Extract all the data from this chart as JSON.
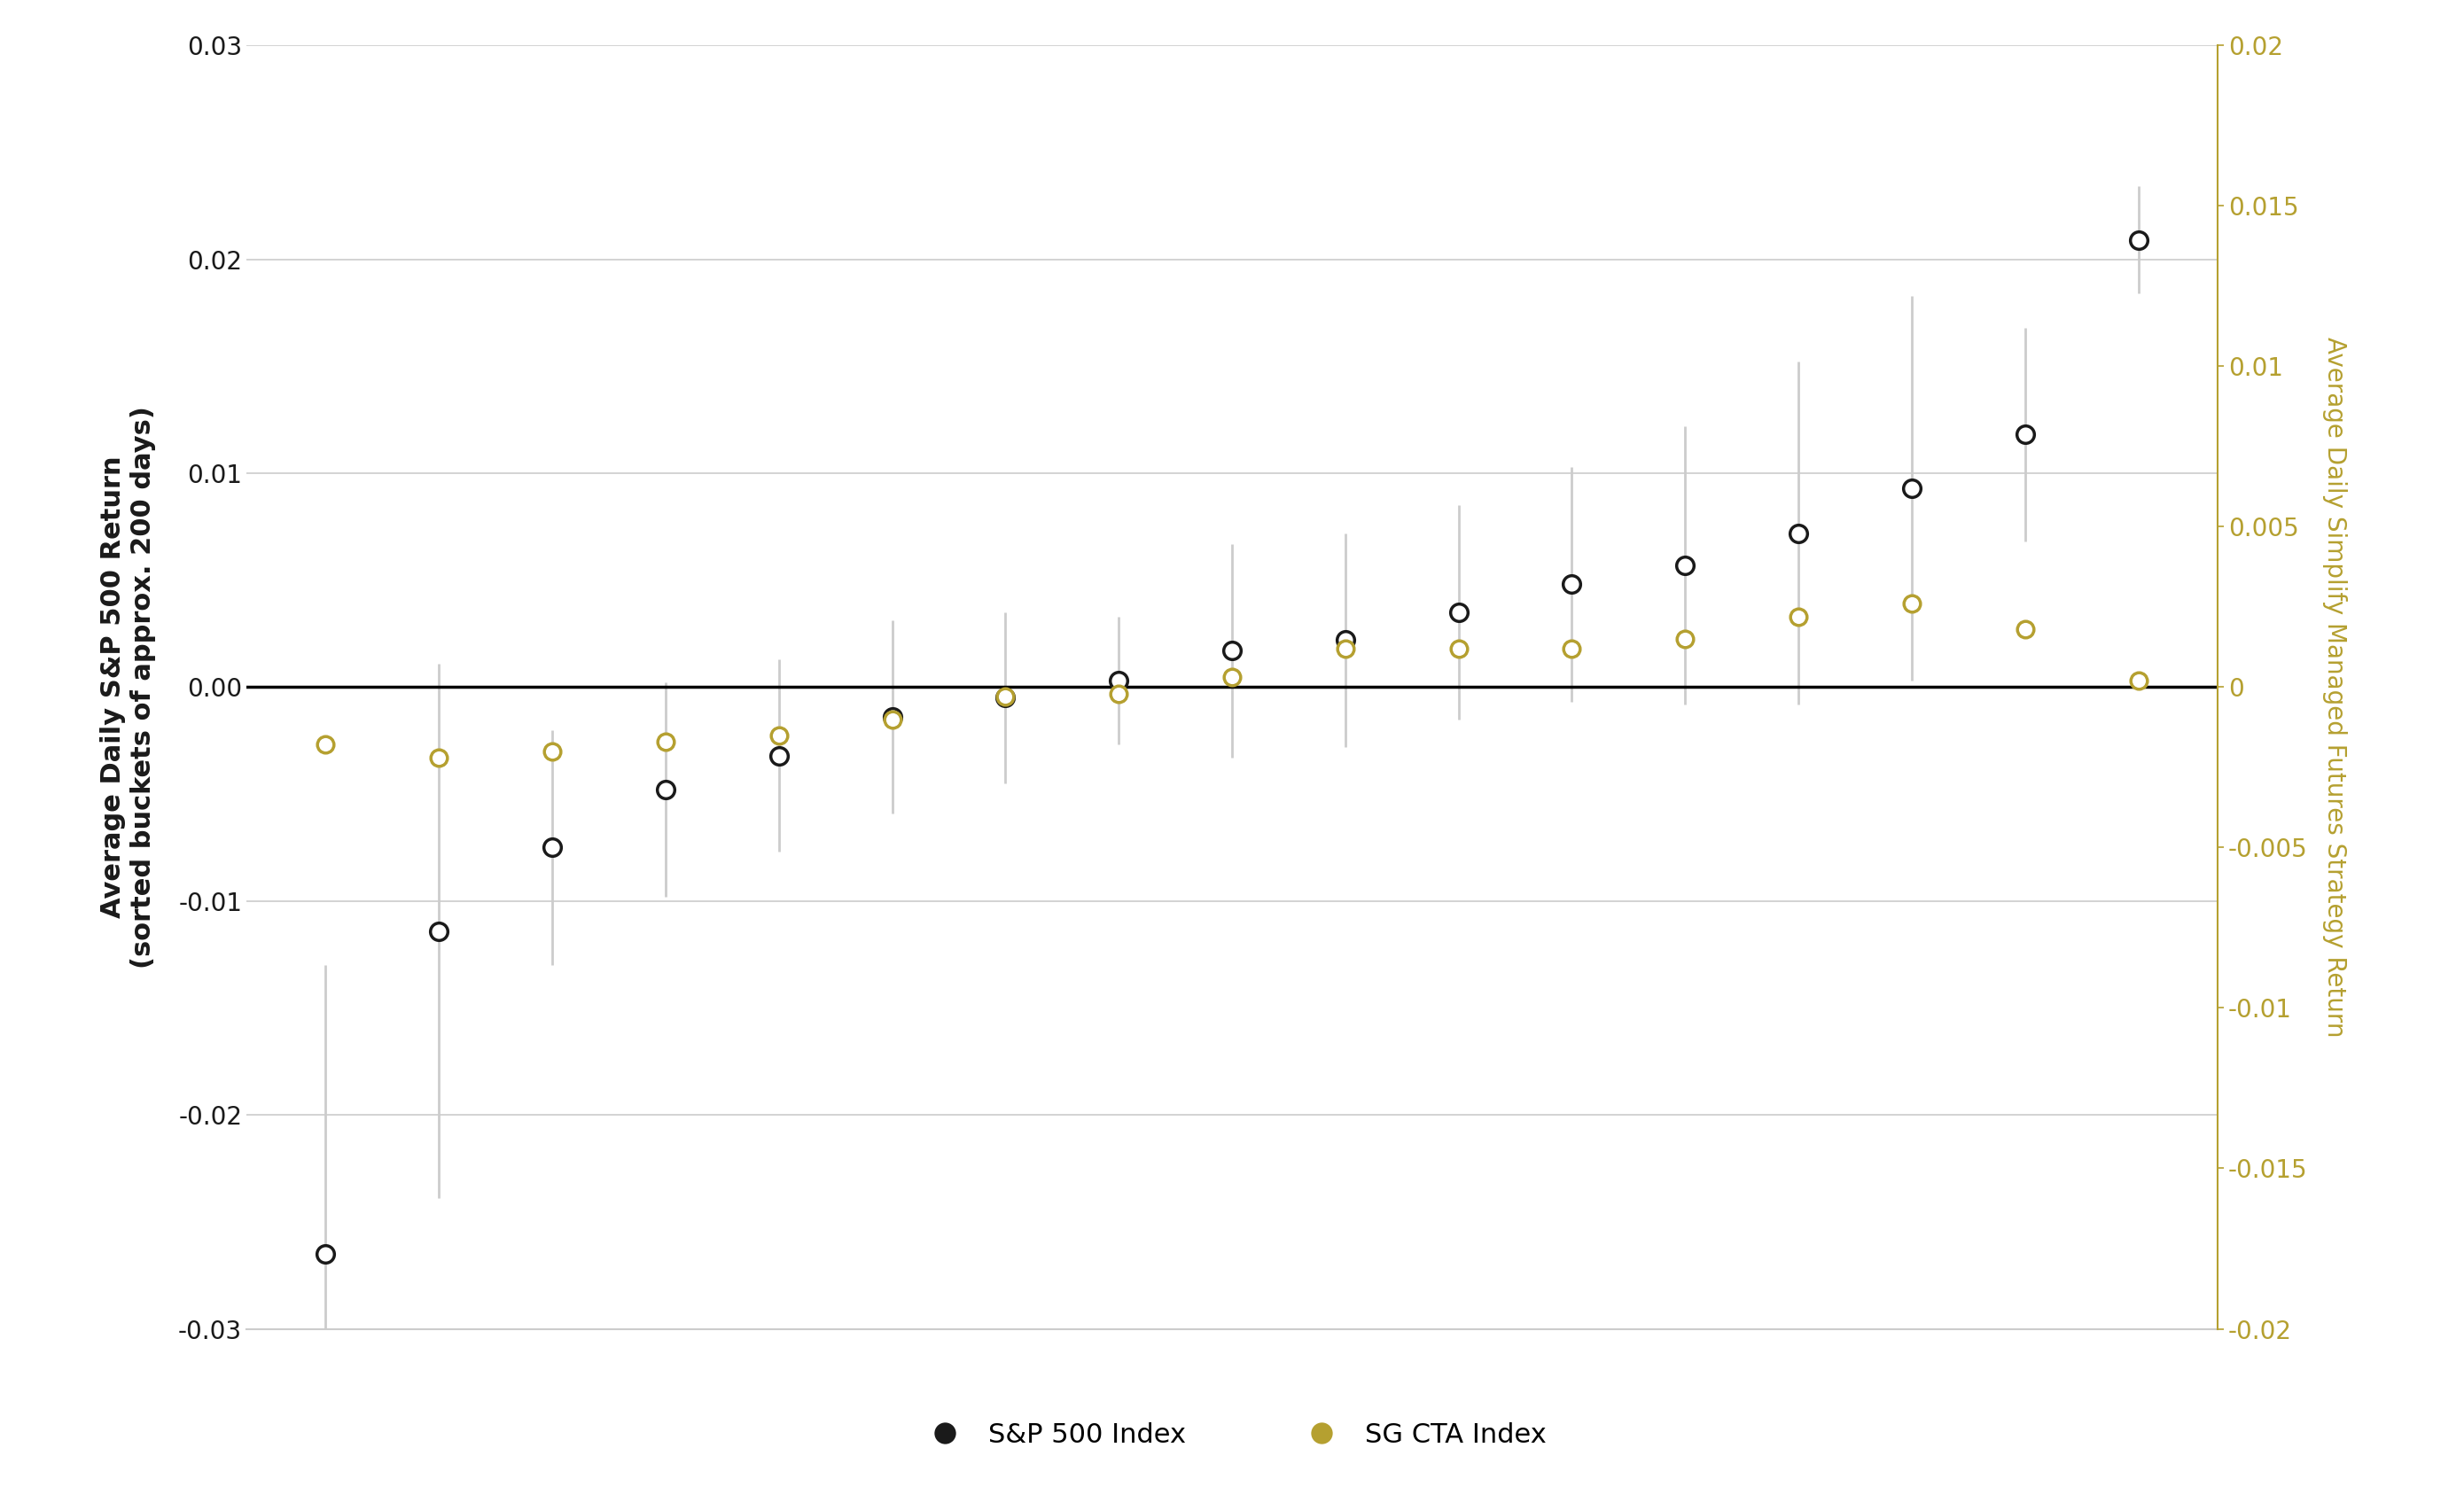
{
  "x_positions": [
    1,
    2,
    3,
    4,
    5,
    6,
    7,
    8,
    9,
    10,
    11,
    12,
    13,
    14,
    15,
    16,
    17
  ],
  "sp500_values": [
    -0.0265,
    -0.0114,
    -0.0075,
    -0.0048,
    -0.0032,
    -0.0014,
    -0.0005,
    0.0003,
    0.0017,
    0.0022,
    0.0035,
    0.0048,
    0.0057,
    0.0072,
    0.0093,
    0.0118,
    0.0209
  ],
  "cta_values": [
    -0.0018,
    -0.0022,
    -0.002,
    -0.0017,
    -0.0015,
    -0.001,
    -0.0003,
    -0.0002,
    0.0003,
    0.0012,
    0.0012,
    0.0012,
    0.0015,
    0.0022,
    0.0026,
    0.0018,
    0.0002
  ],
  "sp500_err_upper": [
    0.0135,
    0.0125,
    0.0055,
    0.005,
    0.0045,
    0.0045,
    0.004,
    0.003,
    0.005,
    0.005,
    0.005,
    0.0055,
    0.0065,
    0.008,
    0.009,
    0.005,
    0.0025
  ],
  "sp500_err_lower": [
    0.0135,
    0.0125,
    0.0055,
    0.005,
    0.0045,
    0.0045,
    0.004,
    0.003,
    0.005,
    0.005,
    0.005,
    0.0055,
    0.0065,
    0.008,
    0.009,
    0.005,
    0.0025
  ],
  "sp500_color": "#1a1a1a",
  "cta_color": "#b5a030",
  "errorbar_color": "#cccccc",
  "zero_line_color": "#000000",
  "grid_color": "#cccccc",
  "bottom_border_color": "#cccccc",
  "background_color": "#ffffff",
  "left_ylabel_line1": "Average Daily S&P 500 Return",
  "left_ylabel_line2": "(sorted buckets of approx. 200 days)",
  "right_ylabel": "Average Daily Simplify Managed Futures Strategy Return",
  "ylim_left": [
    -0.03,
    0.03
  ],
  "ylim_right": [
    -0.02,
    0.02
  ],
  "left_yticks": [
    -0.03,
    -0.02,
    -0.01,
    0.0,
    0.01,
    0.02,
    0.03
  ],
  "right_yticks": [
    -0.02,
    -0.015,
    -0.01,
    -0.005,
    0.0,
    0.005,
    0.01,
    0.015,
    0.02
  ],
  "legend_sp500": "S&P 500 Index",
  "legend_cta": "SG CTA Index",
  "sp500_marker_size": 200,
  "cta_marker_size": 180,
  "marker_linewidth": 2.5,
  "n_buckets": 17
}
